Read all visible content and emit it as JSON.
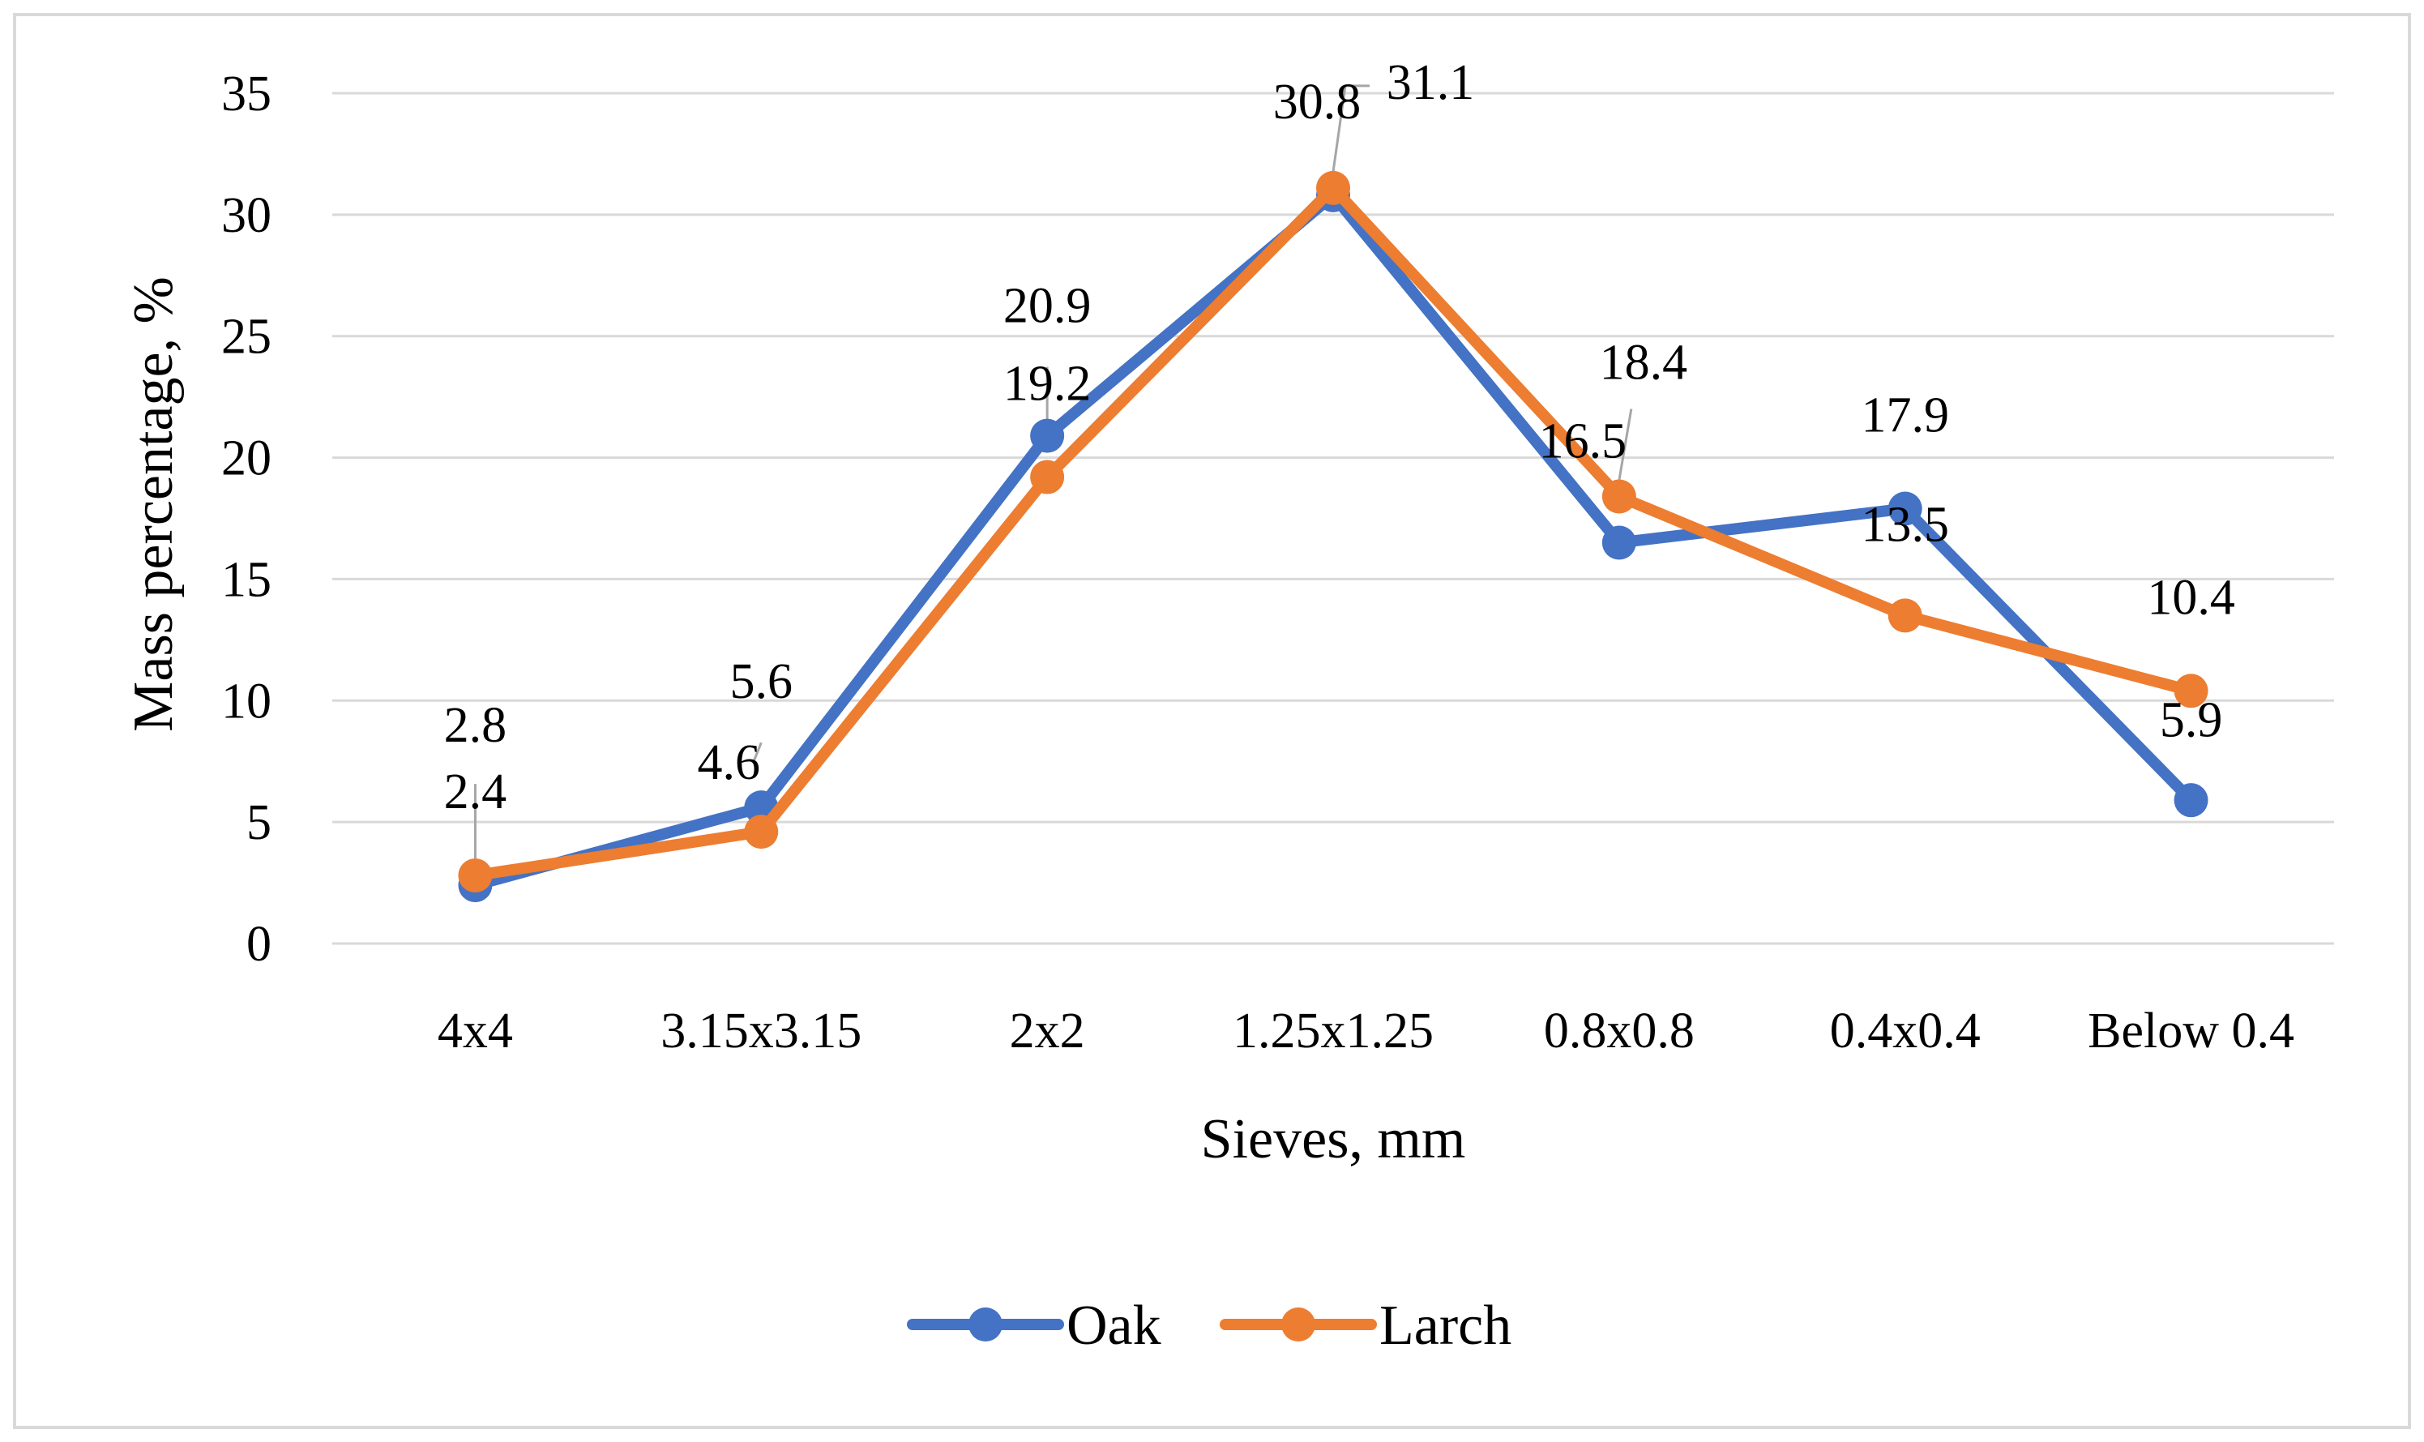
{
  "chart_data": {
    "type": "line",
    "title": "",
    "xlabel": "Sieves, mm",
    "ylabel": "Mass percentage, %",
    "categories": [
      "4x4",
      "3.15x3.15",
      "2x2",
      "1.25x1.25",
      "0.8x0.8",
      "0.4x0.4",
      "Below 0.4"
    ],
    "ylim": [
      0,
      35
    ],
    "yticks": [
      0,
      5,
      10,
      15,
      20,
      25,
      30,
      35
    ],
    "grid": true,
    "legend": "bottom-center",
    "series": [
      {
        "name": "Oak",
        "color": "#4472c4",
        "values": [
          2.4,
          5.6,
          20.9,
          30.8,
          16.5,
          17.9,
          5.9
        ]
      },
      {
        "name": "Larch",
        "color": "#ed7d31",
        "values": [
          2.8,
          4.6,
          19.2,
          31.1,
          18.4,
          13.5,
          10.4
        ]
      }
    ]
  }
}
